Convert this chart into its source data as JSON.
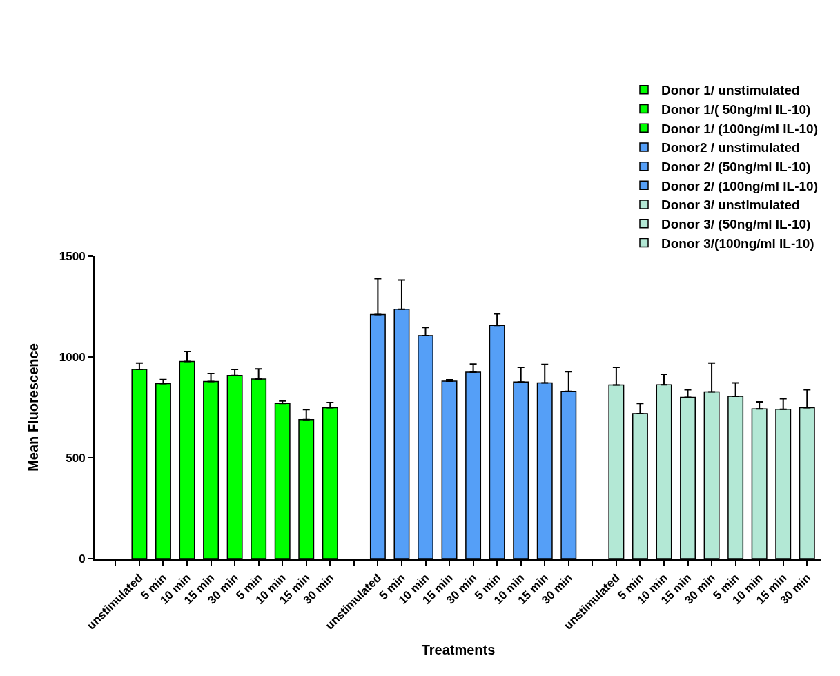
{
  "chart_data": {
    "type": "bar",
    "xlabel": "Treatments",
    "ylabel": "Mean Fluorescence",
    "categories": [
      null,
      "unstimulated",
      "5 min",
      "10 min",
      "15 min",
      "30 min",
      "5 min",
      "10 min",
      "15 min",
      "30 min",
      null,
      "unstimulated",
      "5 min",
      "10 min",
      "15 min",
      "30 min",
      "5 min",
      "10 min",
      "15 min",
      "30 min",
      null,
      "unstimulated",
      "5 min",
      "10 min",
      "15 min",
      "30 min",
      "5 min",
      "10 min",
      "15 min",
      "30 min"
    ],
    "series": [
      {
        "name": "Donor 1/ unstimulated",
        "color": "#00ff00",
        "values": [
          null,
          938,
          null,
          null,
          null,
          null,
          null,
          null,
          null,
          null,
          null,
          null,
          null,
          null,
          null,
          null,
          null,
          null,
          null,
          null,
          null,
          null,
          null,
          null,
          null,
          null,
          null,
          null,
          null,
          null
        ],
        "errors": [
          null,
          [
            938,
            970
          ],
          null,
          null,
          null,
          null,
          null,
          null,
          null,
          null,
          null,
          null,
          null,
          null,
          null,
          null,
          null,
          null,
          null,
          null,
          null,
          null,
          null,
          null,
          null,
          null,
          null,
          null,
          null,
          null
        ]
      },
      {
        "name": "Donor 1/( 50ng/ml IL-10)",
        "color": "#00ff00",
        "values": [
          null,
          null,
          868,
          978,
          878,
          908,
          null,
          null,
          null,
          null,
          null,
          null,
          null,
          null,
          null,
          null,
          null,
          null,
          null,
          null,
          null,
          null,
          null,
          null,
          null,
          null,
          null,
          null,
          null,
          null
        ],
        "errors": [
          null,
          null,
          [
            868,
            888
          ],
          [
            978,
            1027
          ],
          [
            878,
            918
          ],
          [
            908,
            938
          ],
          null,
          null,
          null,
          null,
          null,
          null,
          null,
          null,
          null,
          null,
          null,
          null,
          null,
          null,
          null,
          null,
          null,
          null,
          null,
          null,
          null,
          null,
          null,
          null
        ]
      },
      {
        "name": "Donor 1/ (100ng/ml IL-10)",
        "color": "#00ff00",
        "values": [
          null,
          null,
          null,
          null,
          null,
          null,
          890,
          770,
          689,
          748,
          null,
          null,
          null,
          null,
          null,
          null,
          null,
          null,
          null,
          null,
          null,
          null,
          null,
          null,
          null,
          null,
          null,
          null,
          null,
          null
        ],
        "errors": [
          null,
          null,
          null,
          null,
          null,
          null,
          [
            890,
            941
          ],
          [
            770,
            782
          ],
          [
            689,
            739
          ],
          [
            748,
            774
          ],
          null,
          null,
          null,
          null,
          null,
          null,
          null,
          null,
          null,
          null,
          null,
          null,
          null,
          null,
          null,
          null,
          null,
          null,
          null,
          null
        ]
      },
      {
        "name": "Donor2 / unstimulated",
        "color": "#559ff7",
        "values": [
          null,
          null,
          null,
          null,
          null,
          null,
          null,
          null,
          null,
          null,
          null,
          1211,
          null,
          null,
          null,
          null,
          null,
          null,
          null,
          null,
          null,
          null,
          null,
          null,
          null,
          null,
          null,
          null,
          null,
          null
        ],
        "errors": [
          null,
          null,
          null,
          null,
          null,
          null,
          null,
          null,
          null,
          null,
          null,
          [
            1211,
            1389
          ],
          null,
          null,
          null,
          null,
          null,
          null,
          null,
          null,
          null,
          null,
          null,
          null,
          null,
          null,
          null,
          null,
          null,
          null
        ]
      },
      {
        "name": "Donor 2/ (50ng/ml IL-10)",
        "color": "#559ff7",
        "values": [
          null,
          null,
          null,
          null,
          null,
          null,
          null,
          null,
          null,
          null,
          null,
          null,
          1237,
          1106,
          880,
          925,
          null,
          null,
          null,
          null,
          null,
          null,
          null,
          null,
          null,
          null,
          null,
          null,
          null,
          null
        ],
        "errors": [
          null,
          null,
          null,
          null,
          null,
          null,
          null,
          null,
          null,
          null,
          null,
          null,
          [
            1237,
            1382
          ],
          [
            1106,
            1146
          ],
          [
            880,
            887
          ],
          [
            925,
            965
          ],
          null,
          null,
          null,
          null,
          null,
          null,
          null,
          null,
          null,
          null,
          null,
          null,
          null,
          null
        ]
      },
      {
        "name": "Donor 2/ (100ng/ml IL-10)",
        "color": "#559ff7",
        "values": [
          null,
          null,
          null,
          null,
          null,
          null,
          null,
          null,
          null,
          null,
          null,
          null,
          null,
          null,
          null,
          null,
          1157,
          876,
          872,
          830,
          null,
          null,
          null,
          null,
          null,
          null,
          null,
          null,
          null,
          null
        ],
        "errors": [
          null,
          null,
          null,
          null,
          null,
          null,
          null,
          null,
          null,
          null,
          null,
          null,
          null,
          null,
          null,
          null,
          [
            1157,
            1214
          ],
          [
            876,
            949
          ],
          [
            872,
            963
          ],
          [
            830,
            927
          ],
          null,
          null,
          null,
          null,
          null,
          null,
          null,
          null,
          null,
          null
        ]
      },
      {
        "name": "Donor 3/ unstimulated",
        "color": "#b3e8d5",
        "values": [
          null,
          null,
          null,
          null,
          null,
          null,
          null,
          null,
          null,
          null,
          null,
          null,
          null,
          null,
          null,
          null,
          null,
          null,
          null,
          null,
          null,
          861,
          null,
          null,
          null,
          null,
          null,
          null,
          null,
          null
        ],
        "errors": [
          null,
          null,
          null,
          null,
          null,
          null,
          null,
          null,
          null,
          null,
          null,
          null,
          null,
          null,
          null,
          null,
          null,
          null,
          null,
          null,
          null,
          [
            861,
            949
          ],
          null,
          null,
          null,
          null,
          null,
          null,
          null,
          null
        ]
      },
      {
        "name": "Donor 3/ (50ng/ml IL-10)",
        "color": "#b3e8d5",
        "values": [
          null,
          null,
          null,
          null,
          null,
          null,
          null,
          null,
          null,
          null,
          null,
          null,
          null,
          null,
          null,
          null,
          null,
          null,
          null,
          null,
          null,
          null,
          719,
          862,
          800,
          827,
          null,
          null,
          null,
          null
        ],
        "errors": [
          null,
          null,
          null,
          null,
          null,
          null,
          null,
          null,
          null,
          null,
          null,
          null,
          null,
          null,
          null,
          null,
          null,
          null,
          null,
          null,
          null,
          null,
          [
            719,
            770
          ],
          [
            862,
            914
          ],
          [
            800,
            837
          ],
          [
            827,
            970
          ],
          null,
          null,
          null,
          null
        ]
      },
      {
        "name": "Donor 3/(100ng/ml IL-10)",
        "color": "#b3e8d5",
        "values": [
          null,
          null,
          null,
          null,
          null,
          null,
          null,
          null,
          null,
          null,
          null,
          null,
          null,
          null,
          null,
          null,
          null,
          null,
          null,
          null,
          null,
          null,
          null,
          null,
          null,
          null,
          805,
          742,
          741,
          748
        ],
        "errors": [
          null,
          null,
          null,
          null,
          null,
          null,
          null,
          null,
          null,
          null,
          null,
          null,
          null,
          null,
          null,
          null,
          null,
          null,
          null,
          null,
          null,
          null,
          null,
          null,
          null,
          null,
          [
            805,
            872
          ],
          [
            742,
            777
          ],
          [
            741,
            793
          ],
          [
            748,
            837
          ]
        ]
      }
    ],
    "ylim": [
      0,
      1500
    ],
    "yticks": [
      0,
      500,
      1000,
      1500
    ],
    "legend": "top right"
  }
}
